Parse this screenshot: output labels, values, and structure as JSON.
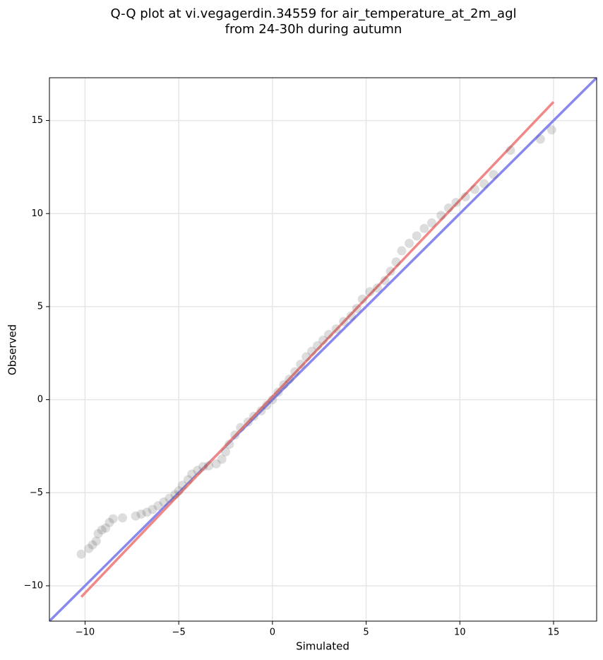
{
  "chart_data": {
    "type": "scatter",
    "title": [
      "Q-Q plot at vi.vegagerdin.34559 for air_temperature_at_2m_agl",
      "from 24-30h during autumn"
    ],
    "x_label": "Simulated",
    "y_label": "Observed",
    "xlim": [
      -11.9,
      17.3
    ],
    "ylim": [
      -11.9,
      17.3
    ],
    "xticks": [
      {
        "value": -10,
        "label": "−10"
      },
      {
        "value": -5,
        "label": "−5"
      },
      0,
      5,
      10,
      15
    ],
    "yticks": [
      {
        "value": -10,
        "label": "−10"
      },
      {
        "value": -5,
        "label": "−5"
      },
      0,
      5,
      10,
      15
    ],
    "grid": true,
    "reference_lines": [
      {
        "color": "#8888ee",
        "x": [
          -11.9,
          17.3
        ],
        "y": [
          -11.9,
          17.3
        ]
      },
      {
        "color": "#f08888",
        "x": [
          -10.2,
          15
        ],
        "y": [
          -10.6,
          16
        ]
      }
    ],
    "series": [
      {
        "color": "#444444",
        "x": [
          -10.2,
          -9.8,
          -9.6,
          -9.4,
          -9.3,
          -9.1,
          -8.9,
          -8.7,
          -8.5,
          -8.0,
          -7.3,
          -7.0,
          -6.7,
          -6.4,
          -6.1,
          -5.8,
          -5.5,
          -5.2,
          -5.0,
          -4.8,
          -4.5,
          -4.3,
          -4.0,
          -3.7,
          -3.4,
          -3.0,
          -2.7,
          -2.5,
          -2.3,
          -2.0,
          -1.7,
          -1.3,
          -1.0,
          -0.6,
          -0.3,
          0,
          0.3,
          0.6,
          0.9,
          1.2,
          1.5,
          1.8,
          2.1,
          2.4,
          2.7,
          3.0,
          3.4,
          3.8,
          4.2,
          4.5,
          4.8,
          5.2,
          5.6,
          6.0,
          6.3,
          6.6,
          6.9,
          7.3,
          7.7,
          8.1,
          8.5,
          9.0,
          9.4,
          9.8,
          10.3,
          10.8,
          11.3,
          11.8,
          12.7,
          14.3,
          14.9
        ],
        "y": [
          -8.3,
          -8.0,
          -7.8,
          -7.6,
          -7.2,
          -7.0,
          -6.9,
          -6.6,
          -6.4,
          -6.35,
          -6.25,
          -6.15,
          -6.05,
          -5.9,
          -5.7,
          -5.5,
          -5.3,
          -5.1,
          -4.9,
          -4.6,
          -4.3,
          -4.0,
          -3.8,
          -3.6,
          -3.55,
          -3.45,
          -3.2,
          -2.8,
          -2.4,
          -1.9,
          -1.5,
          -1.2,
          -0.9,
          -0.6,
          -0.3,
          0,
          0.4,
          0.8,
          1.1,
          1.5,
          1.9,
          2.3,
          2.6,
          2.9,
          3.2,
          3.5,
          3.8,
          4.2,
          4.5,
          4.9,
          5.4,
          5.8,
          6.0,
          6.4,
          6.9,
          7.4,
          8.0,
          8.4,
          8.8,
          9.2,
          9.5,
          9.9,
          10.3,
          10.6,
          10.9,
          11.3,
          11.6,
          12.1,
          13.4,
          14.0,
          14.5
        ]
      }
    ]
  }
}
